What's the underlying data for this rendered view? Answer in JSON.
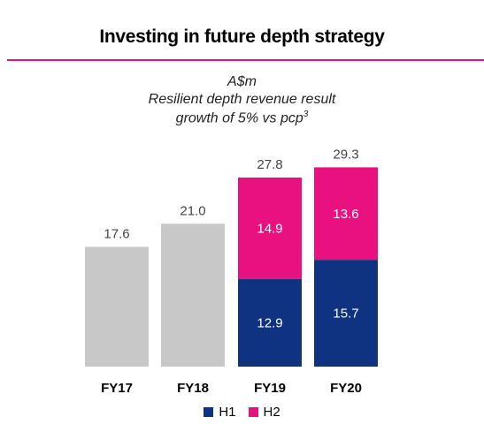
{
  "chart_data": {
    "type": "bar",
    "title": "Investing in future depth strategy",
    "subtitle_lines": [
      "A$m",
      "Resilient depth revenue result",
      "growth of 5% vs pcp"
    ],
    "subtitle_superscript": "3",
    "categories": [
      "FY17",
      "FY18",
      "FY19",
      "FY20"
    ],
    "totals": [
      "17.6",
      "21.0",
      "27.8",
      "29.3"
    ],
    "series": [
      {
        "name": "H1",
        "color": "#0f3381",
        "values": [
          null,
          null,
          12.9,
          15.7
        ],
        "labels": [
          "",
          "",
          "12.9",
          "15.7"
        ]
      },
      {
        "name": "H2",
        "color": "#e8117f",
        "values": [
          null,
          null,
          14.9,
          13.6
        ],
        "labels": [
          "",
          "",
          "14.9",
          "13.6"
        ]
      }
    ],
    "full_year_values": [
      17.6,
      21.0,
      null,
      null
    ],
    "full_year_color": "#c8c8c8",
    "ylim": [
      0,
      30
    ],
    "grid": false,
    "legend_position": "bottom"
  }
}
